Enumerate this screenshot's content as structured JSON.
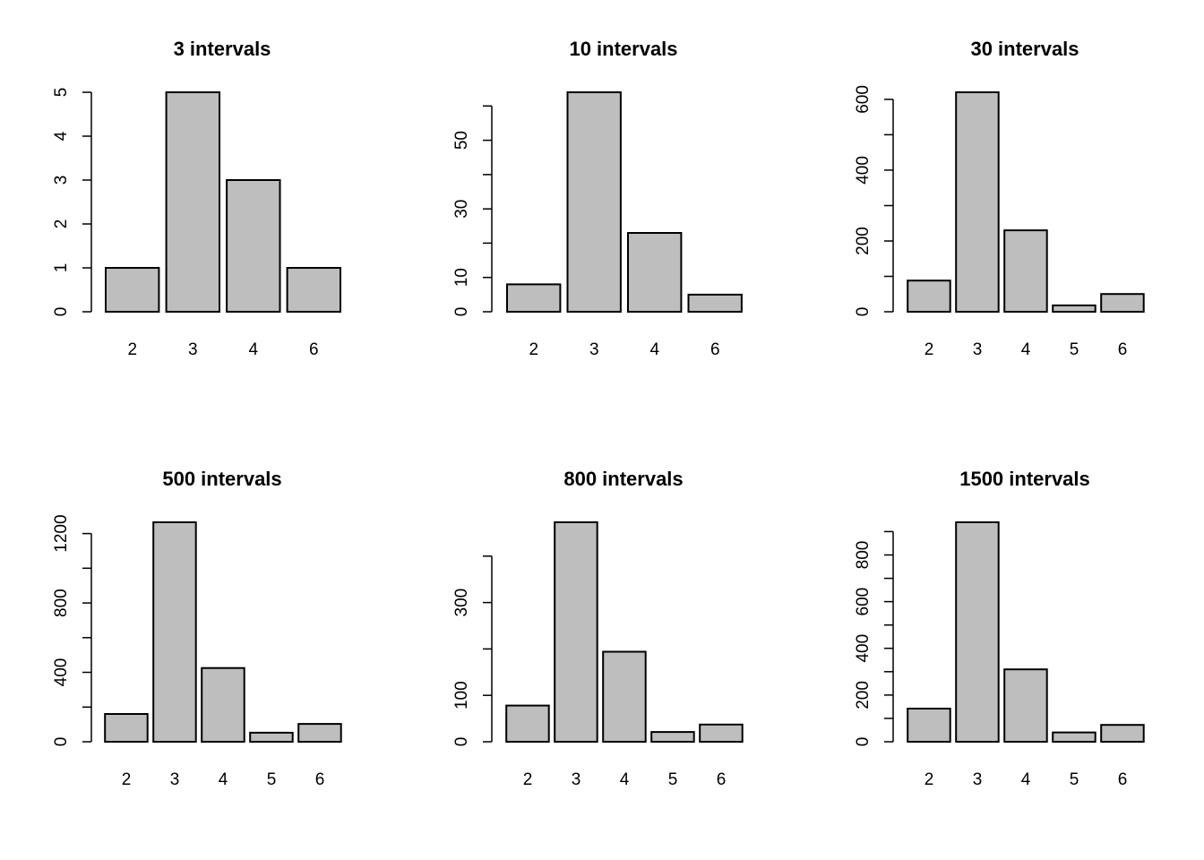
{
  "colors": {
    "bar_fill": "#bebebe",
    "bar_stroke": "#000000",
    "background": "#ffffff"
  },
  "chart_data": [
    {
      "type": "bar",
      "title": "3 intervals",
      "categories": [
        "2",
        "3",
        "4",
        "6"
      ],
      "values": [
        1,
        5,
        3,
        1
      ],
      "ylim": [
        0,
        5
      ],
      "yticks": [
        0,
        1,
        2,
        3,
        4,
        5
      ],
      "ytick_labels": [
        "0",
        "1",
        "2",
        "3",
        "4",
        "5"
      ]
    },
    {
      "type": "bar",
      "title": "10 intervals",
      "categories": [
        "2",
        "3",
        "4",
        "6"
      ],
      "values": [
        8,
        64,
        23,
        5
      ],
      "ylim": [
        0,
        64
      ],
      "yticks": [
        0,
        10,
        20,
        30,
        40,
        50,
        60
      ],
      "ytick_labels": [
        "0",
        "10",
        "",
        "30",
        "",
        "50",
        ""
      ]
    },
    {
      "type": "bar",
      "title": "30 intervals",
      "categories": [
        "2",
        "3",
        "4",
        "5",
        "6"
      ],
      "values": [
        88,
        620,
        230,
        18,
        50
      ],
      "ylim": [
        0,
        620
      ],
      "yticks": [
        0,
        100,
        200,
        300,
        400,
        500,
        600
      ],
      "ytick_labels": [
        "0",
        "",
        "200",
        "",
        "400",
        "",
        "600"
      ]
    },
    {
      "type": "bar",
      "title": "500 intervals",
      "categories": [
        "2",
        "3",
        "4",
        "5",
        "6"
      ],
      "values": [
        160,
        1265,
        425,
        52,
        103
      ],
      "ylim": [
        0,
        1265
      ],
      "yticks": [
        0,
        200,
        400,
        600,
        800,
        1000,
        1200
      ],
      "ytick_labels": [
        "0",
        "",
        "400",
        "",
        "800",
        "",
        "1200"
      ]
    },
    {
      "type": "bar",
      "title": "800 intervals",
      "categories": [
        "2",
        "3",
        "4",
        "5",
        "6"
      ],
      "values": [
        78,
        473,
        194,
        21,
        37
      ],
      "ylim": [
        0,
        473
      ],
      "yticks": [
        0,
        100,
        200,
        300,
        400
      ],
      "ytick_labels": [
        "0",
        "100",
        "",
        "300",
        ""
      ]
    },
    {
      "type": "bar",
      "title": "1500 intervals",
      "categories": [
        "2",
        "3",
        "4",
        "5",
        "6"
      ],
      "values": [
        142,
        940,
        310,
        40,
        72
      ],
      "ylim": [
        0,
        940
      ],
      "yticks": [
        0,
        100,
        200,
        300,
        400,
        500,
        600,
        700,
        800,
        900
      ],
      "ytick_labels": [
        "0",
        "",
        "200",
        "",
        "400",
        "",
        "600",
        "",
        "800",
        ""
      ]
    }
  ]
}
